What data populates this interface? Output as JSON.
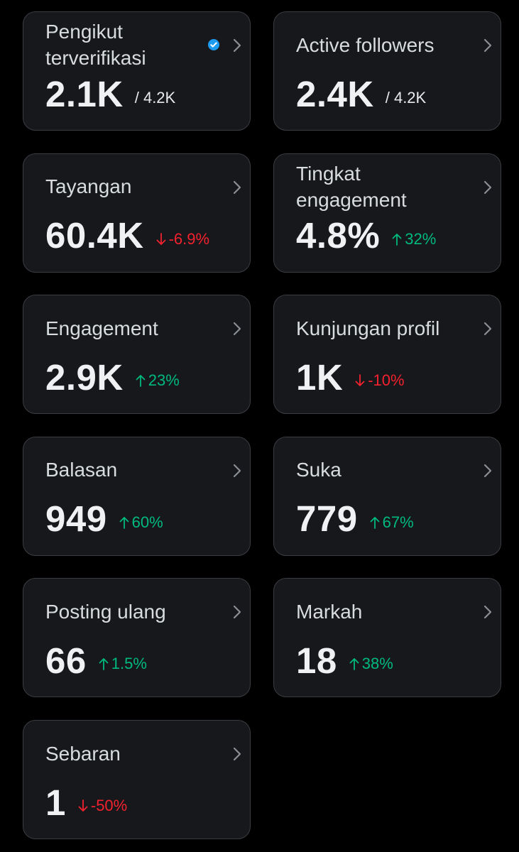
{
  "cards": [
    {
      "label": "Pengikut terverifikasi",
      "value": "2.1K",
      "total": "/ 4.2K"
    },
    {
      "label": "Active followers",
      "value": "2.4K",
      "total": "/ 4.2K"
    },
    {
      "label": "Tayangan",
      "value": "60.4K",
      "change": "-6.9%"
    },
    {
      "label": "Tingkat engagement",
      "value": "4.8%",
      "change": "32%"
    },
    {
      "label": "Engagement",
      "value": "2.9K",
      "change": "23%"
    },
    {
      "label": "Kunjungan profil",
      "value": "1K",
      "change": "-10%"
    },
    {
      "label": "Balasan",
      "value": "949",
      "change": "60%"
    },
    {
      "label": "Suka",
      "value": "779",
      "change": "67%"
    },
    {
      "label": "Posting ulang",
      "value": "66",
      "change": "1.5%"
    },
    {
      "label": "Markah",
      "value": "18",
      "change": "38%"
    },
    {
      "label": "Sebaran",
      "value": "1",
      "change": "-50%"
    }
  ]
}
